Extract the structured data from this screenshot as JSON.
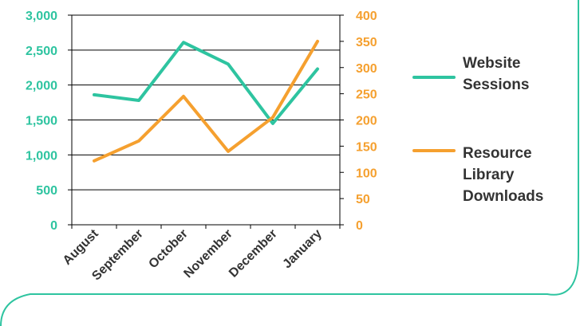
{
  "chart_data": {
    "type": "line",
    "categories": [
      "August",
      "September",
      "October",
      "November",
      "December",
      "January"
    ],
    "series": [
      {
        "name": "Website Sessions",
        "axis": "left",
        "color": "#2EC4A0",
        "values": [
          1860,
          1780,
          2610,
          2300,
          1450,
          2230
        ]
      },
      {
        "name": "Resource Library Downloads",
        "axis": "right",
        "color": "#F5A02F",
        "values": [
          122,
          160,
          245,
          140,
          205,
          350
        ]
      }
    ],
    "y_left": {
      "ylim": [
        0,
        3000
      ],
      "ticks": [
        "0",
        "500",
        "1,000",
        "1,500",
        "2,000",
        "2,500",
        "3,000"
      ],
      "color": "#2EC4A0"
    },
    "y_right": {
      "ylim": [
        0,
        400
      ],
      "ticks": [
        "0",
        "50",
        "100",
        "150",
        "200",
        "250",
        "300",
        "350",
        "400"
      ],
      "color": "#F5A02F"
    },
    "grid": true,
    "legend_position": "right",
    "frame_color": "#2EC4A0",
    "text_color": "#333333",
    "axis_line_color": "#000000"
  }
}
